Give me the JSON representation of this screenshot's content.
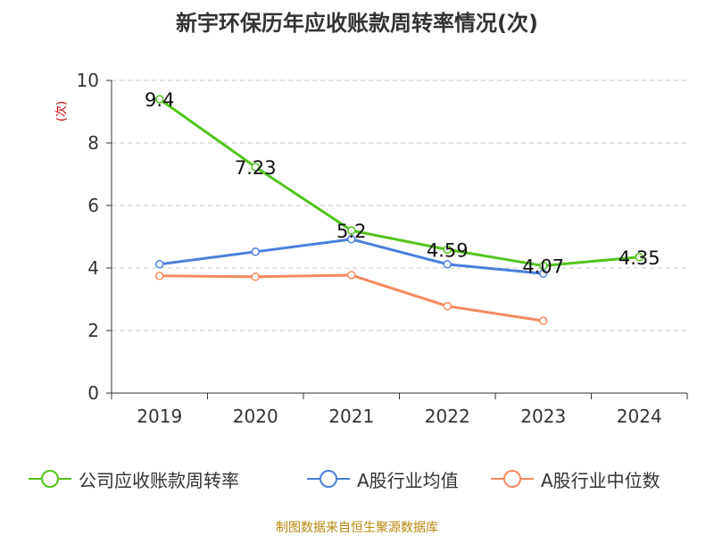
{
  "title": "新宇环保历年应收账款周转率情况(次)",
  "source_text": "制图数据来自恒生聚源数据库",
  "colors": {
    "series1": "#52c41a",
    "series2": "#4a7fdb",
    "series3": "#f4895f",
    "unit_label": "#cc0000",
    "source_text": "#b8860b",
    "axis": "#333333",
    "grid": "#c8c8c8"
  },
  "chart_data": {
    "type": "line",
    "title": "新宇环保历年应收账款周转率情况(次)",
    "ylabel": "(次)",
    "xlabel": "",
    "ylim": [
      0,
      10
    ],
    "y_ticks": [
      0,
      2,
      4,
      6,
      8,
      10
    ],
    "grid": true,
    "legend_position": "bottom",
    "categories": [
      "2019",
      "2020",
      "2021",
      "2022",
      "2023",
      "2024"
    ],
    "series": [
      {
        "name": "公司应收账款周转率",
        "values": [
          9.4,
          7.23,
          5.2,
          4.59,
          4.07,
          4.35
        ],
        "labels": [
          "9.4",
          "7.23",
          "5.2",
          "4.59",
          "4.07",
          "4.35"
        ],
        "color": "#52c41a"
      },
      {
        "name": "A股行业均值",
        "values": [
          4.12,
          4.52,
          4.92,
          4.12,
          3.82,
          null
        ],
        "color": "#4a7fdb"
      },
      {
        "name": "A股行业中位数",
        "values": [
          3.75,
          3.72,
          3.77,
          2.78,
          2.31,
          null
        ],
        "color": "#f4895f"
      }
    ]
  }
}
